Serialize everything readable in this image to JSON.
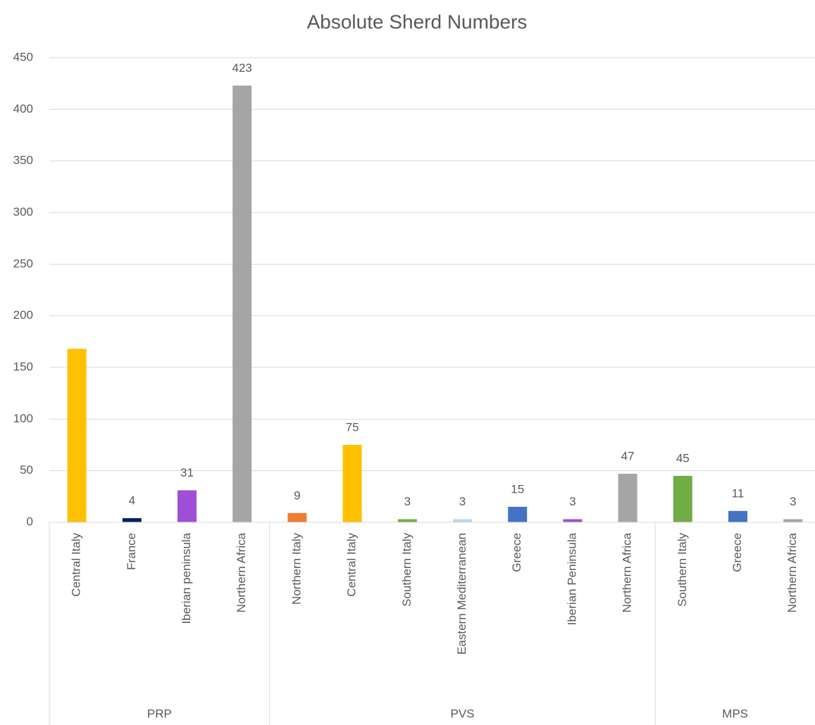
{
  "chart_data": {
    "type": "bar",
    "title": "Absolute Sherd Numbers",
    "categories": [
      "Central Italy",
      "France",
      "Iberian peninsula",
      "Northern Africa",
      "Northern Italy",
      "Central Italy",
      "Southern Italy",
      "Eastern Mediterranean",
      "Greece",
      "Iberian Peninsula",
      "Northern Africa",
      "Southern Italy",
      "Greece",
      "Northern Africa"
    ],
    "groups": [
      {
        "name": "PRP",
        "count": 4
      },
      {
        "name": "PVS",
        "count": 7
      },
      {
        "name": "MPS",
        "count": 3
      }
    ],
    "values": [
      168,
      4,
      31,
      423,
      9,
      75,
      3,
      3,
      15,
      3,
      47,
      45,
      11,
      3
    ],
    "value_labels": [
      null,
      "4",
      "31",
      "423",
      "9",
      "75",
      "3",
      "3",
      "15",
      "3",
      "47",
      "45",
      "11",
      "3"
    ],
    "colors": [
      "#ffc000",
      "#002060",
      "#9e4fd6",
      "#a5a5a5",
      "#ed7d31",
      "#ffc000",
      "#70ad47",
      "#bdd7ee",
      "#4472c4",
      "#9e4fd6",
      "#a5a5a5",
      "#70ad47",
      "#4472c4",
      "#a5a5a5"
    ],
    "ylim": [
      0,
      450
    ],
    "yticks": [
      0,
      50,
      100,
      150,
      200,
      250,
      300,
      350,
      400,
      450
    ],
    "grid": true
  }
}
